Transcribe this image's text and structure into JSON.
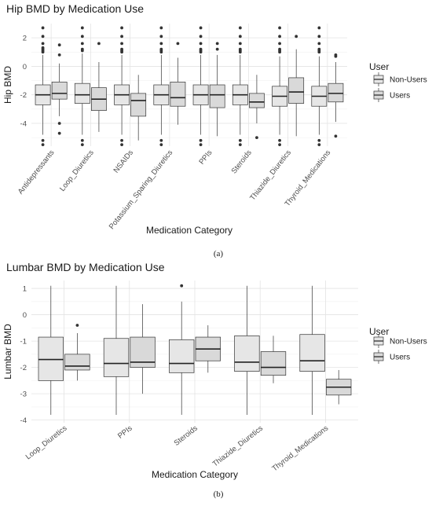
{
  "panels": [
    "(a)",
    "(b)"
  ],
  "chart_data": [
    {
      "type": "box",
      "title": "Hip BMD by Medication Use",
      "xlabel": "Medication Category",
      "ylabel": "Hip BMD",
      "ylim": [
        -5.6,
        3.0
      ],
      "yticks": [
        -4,
        -2,
        0,
        2
      ],
      "legend": {
        "title": "User",
        "position": "right",
        "entries": [
          "Non-Users",
          "Users"
        ]
      },
      "colors": {
        "Non-Users": "#e6e6e6",
        "Users": "#d9d9d9"
      },
      "categories": [
        "Antidepressants",
        "Loop_Diuretics",
        "NSAIDs",
        "Potassium_Sparing_Diuretics",
        "PPIs",
        "Steroids",
        "Thiazide_Diuretics",
        "Thyroid_Medications"
      ],
      "series": [
        {
          "name": "Non-Users",
          "boxes": [
            {
              "q1": -2.7,
              "median": -2.0,
              "q3": -1.3,
              "whisker_low": -4.8,
              "whisker_high": 0.8,
              "outliers": [
                1.0,
                1.1,
                1.2,
                1.3,
                1.6,
                2.1,
                2.7,
                -5.2,
                -5.5
              ]
            },
            {
              "q1": -2.6,
              "median": -2.0,
              "q3": -1.2,
              "whisker_low": -4.8,
              "whisker_high": 0.9,
              "outliers": [
                1.1,
                1.2,
                1.6,
                2.1,
                2.7,
                -5.2,
                -5.5
              ]
            },
            {
              "q1": -2.7,
              "median": -2.0,
              "q3": -1.3,
              "whisker_low": -4.8,
              "whisker_high": 0.8,
              "outliers": [
                1.0,
                1.1,
                1.2,
                1.6,
                2.1,
                2.7,
                -5.2,
                -5.5
              ]
            },
            {
              "q1": -2.7,
              "median": -2.0,
              "q3": -1.3,
              "whisker_low": -4.8,
              "whisker_high": 0.8,
              "outliers": [
                1.0,
                1.1,
                1.2,
                1.6,
                2.1,
                2.7,
                -5.2,
                -5.5
              ]
            },
            {
              "q1": -2.7,
              "median": -2.0,
              "q3": -1.3,
              "whisker_low": -4.8,
              "whisker_high": 0.8,
              "outliers": [
                1.0,
                1.1,
                1.2,
                1.6,
                2.1,
                2.7,
                -5.2,
                -5.5
              ]
            },
            {
              "q1": -2.7,
              "median": -2.0,
              "q3": -1.3,
              "whisker_low": -4.8,
              "whisker_high": 0.8,
              "outliers": [
                1.0,
                1.1,
                1.2,
                1.6,
                2.1,
                2.7,
                -5.2,
                -5.5
              ]
            },
            {
              "q1": -2.8,
              "median": -2.1,
              "q3": -1.4,
              "whisker_low": -4.8,
              "whisker_high": 0.7,
              "outliers": [
                1.0,
                1.1,
                1.2,
                1.6,
                2.1,
                2.7,
                -5.2,
                -5.5
              ]
            },
            {
              "q1": -2.8,
              "median": -2.1,
              "q3": -1.4,
              "whisker_low": -4.8,
              "whisker_high": 0.7,
              "outliers": [
                1.0,
                1.1,
                1.2,
                1.6,
                2.1,
                2.7,
                -5.2,
                -5.5
              ]
            }
          ]
        },
        {
          "name": "Users",
          "boxes": [
            {
              "q1": -2.3,
              "median": -1.9,
              "q3": -1.1,
              "whisker_low": -3.5,
              "whisker_high": 0.2,
              "outliers": [
                0.8,
                1.5,
                -4.0,
                -4.7
              ]
            },
            {
              "q1": -3.1,
              "median": -2.3,
              "q3": -1.5,
              "whisker_low": -4.6,
              "whisker_high": 0.3,
              "outliers": [
                1.6
              ]
            },
            {
              "q1": -3.5,
              "median": -2.4,
              "q3": -1.9,
              "whisker_low": -5.2,
              "whisker_high": -0.6,
              "outliers": []
            },
            {
              "q1": -2.8,
              "median": -2.2,
              "q3": -1.1,
              "whisker_low": -4.1,
              "whisker_high": 0.6,
              "outliers": [
                1.6
              ]
            },
            {
              "q1": -2.9,
              "median": -2.0,
              "q3": -1.3,
              "whisker_low": -4.9,
              "whisker_high": 0.8,
              "outliers": [
                1.2,
                1.6
              ]
            },
            {
              "q1": -2.9,
              "median": -2.5,
              "q3": -1.9,
              "whisker_low": -4.0,
              "whisker_high": -0.6,
              "outliers": [
                -5.0
              ]
            },
            {
              "q1": -2.6,
              "median": -1.8,
              "q3": -0.8,
              "whisker_low": -4.9,
              "whisker_high": 1.2,
              "outliers": [
                2.1
              ]
            },
            {
              "q1": -2.5,
              "median": -1.9,
              "q3": -1.2,
              "whisker_low": -3.9,
              "whisker_high": 0.3,
              "outliers": [
                0.8,
                0.7,
                -4.9
              ]
            }
          ]
        }
      ]
    },
    {
      "type": "box",
      "title": "Lumbar BMD by Medication Use",
      "xlabel": "Medication Category",
      "ylabel": "Lumbar BMD",
      "ylim": [
        -4.1,
        1.3
      ],
      "yticks": [
        -4,
        -3,
        -2,
        -1,
        0,
        1
      ],
      "legend": {
        "title": "User",
        "position": "right",
        "entries": [
          "Non-Users",
          "Users"
        ]
      },
      "colors": {
        "Non-Users": "#e6e6e6",
        "Users": "#d9d9d9"
      },
      "categories": [
        "Loop_Diuretics",
        "PPIs",
        "Steroids",
        "Thiazide_Diuretics",
        "Thyroid_Medications"
      ],
      "series": [
        {
          "name": "Non-Users",
          "boxes": [
            {
              "q1": -2.5,
              "median": -1.7,
              "q3": -0.85,
              "whisker_low": -3.8,
              "whisker_high": 1.1,
              "outliers": []
            },
            {
              "q1": -2.35,
              "median": -1.85,
              "q3": -0.9,
              "whisker_low": -3.8,
              "whisker_high": 1.1,
              "outliers": []
            },
            {
              "q1": -2.2,
              "median": -1.85,
              "q3": -0.95,
              "whisker_low": -3.8,
              "whisker_high": 0.5,
              "outliers": [
                1.1
              ]
            },
            {
              "q1": -2.15,
              "median": -1.8,
              "q3": -0.8,
              "whisker_low": -3.8,
              "whisker_high": 1.1,
              "outliers": []
            },
            {
              "q1": -2.15,
              "median": -1.75,
              "q3": -0.75,
              "whisker_low": -3.8,
              "whisker_high": 1.1,
              "outliers": []
            }
          ]
        },
        {
          "name": "Users",
          "boxes": [
            {
              "q1": -2.1,
              "median": -1.95,
              "q3": -1.5,
              "whisker_low": -2.5,
              "whisker_high": -0.7,
              "outliers": [
                -0.4
              ]
            },
            {
              "q1": -2.0,
              "median": -1.8,
              "q3": -0.85,
              "whisker_low": -3.0,
              "whisker_high": 0.4,
              "outliers": []
            },
            {
              "q1": -1.75,
              "median": -1.3,
              "q3": -0.85,
              "whisker_low": -2.2,
              "whisker_high": -0.4,
              "outliers": []
            },
            {
              "q1": -2.3,
              "median": -2.0,
              "q3": -1.4,
              "whisker_low": -2.6,
              "whisker_high": -0.8,
              "outliers": []
            },
            {
              "q1": -3.05,
              "median": -2.75,
              "q3": -2.45,
              "whisker_low": -3.4,
              "whisker_high": -2.1,
              "outliers": []
            }
          ]
        }
      ]
    }
  ]
}
